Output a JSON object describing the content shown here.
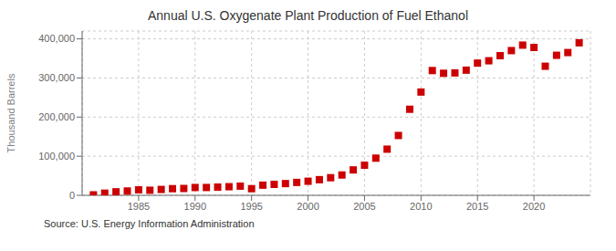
{
  "chart_data": {
    "type": "scatter",
    "title": "Annual U.S. Oxygenate Plant Production of Fuel Ethanol",
    "ylabel": "Thousand Barrels",
    "annotations": [
      "Source: U.S. Energy Information Administration"
    ],
    "color": "#cc0000",
    "marker": "square",
    "grid": true,
    "xlim": [
      1980,
      2025
    ],
    "xticks": [
      1985,
      1990,
      1995,
      2000,
      2005,
      2010,
      2015,
      2020
    ],
    "ylim": [
      0,
      420000
    ],
    "yticks": [
      0,
      {
        "value": 100000,
        "label": "100,000"
      },
      {
        "value": 200000,
        "label": "200,000"
      },
      {
        "value": 300000,
        "label": "300,000"
      },
      {
        "value": 400000,
        "label": "400,000"
      }
    ],
    "x": [
      1981,
      1982,
      1983,
      1984,
      1985,
      1986,
      1987,
      1988,
      1989,
      1990,
      1991,
      1992,
      1993,
      1994,
      1995,
      1996,
      1997,
      1998,
      1999,
      2000,
      2001,
      2002,
      2003,
      2004,
      2005,
      2006,
      2007,
      2008,
      2009,
      2010,
      2011,
      2012,
      2013,
      2014,
      2015,
      2016,
      2017,
      2018,
      2019,
      2020,
      2021,
      2022,
      2023,
      2024
    ],
    "values": [
      1200,
      5500,
      9000,
      11000,
      14000,
      13000,
      15000,
      17000,
      17500,
      20000,
      20000,
      21000,
      22000,
      23500,
      17000,
      26000,
      28000,
      30000,
      33000,
      36000,
      40000,
      45000,
      52000,
      65000,
      77000,
      95000,
      118000,
      153000,
      220000,
      264000,
      319000,
      312000,
      313000,
      320000,
      338000,
      344000,
      357000,
      370000,
      384000,
      378000,
      330000,
      358000,
      365000,
      390000
    ]
  }
}
